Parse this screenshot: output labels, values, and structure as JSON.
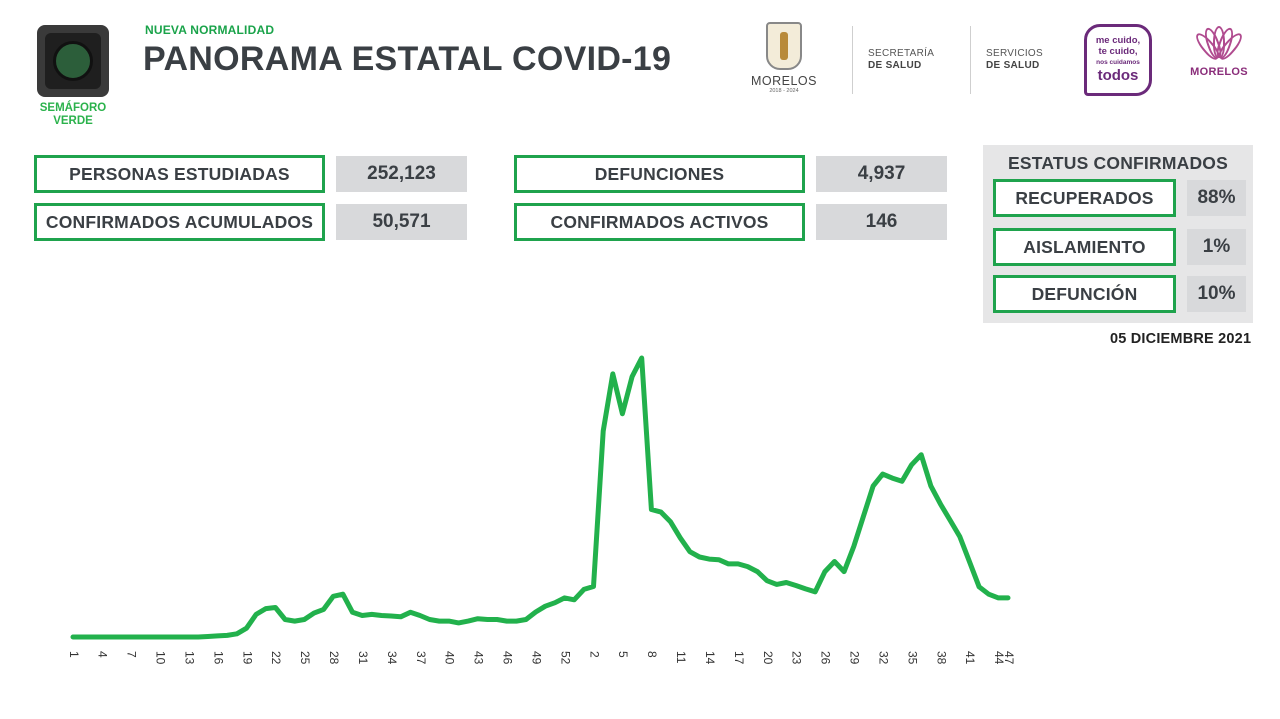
{
  "header": {
    "semaforo_label_line1": "SEMÁFORO",
    "semaforo_label_line2": "VERDE",
    "subtitle": "NUEVA NORMALIDAD",
    "title": "PANORAMA ESTATAL COVID-19",
    "logo_morelos_name": "MORELOS",
    "logo_morelos_years": "2018 - 2024",
    "secretaria_line1": "SECRETARÍA",
    "secretaria_line2": "DE SALUD",
    "servicios_line1": "SERVICIOS",
    "servicios_line2": "DE SALUD",
    "mecuido_line1": "me cuido,",
    "mecuido_line2": "te cuido,",
    "mecuido_line3": "nos cuidamos",
    "mecuido_line4": "todos",
    "flor_name": "MORELOS"
  },
  "stats": {
    "personas_estudiadas_label": "PERSONAS ESTUDIADAS",
    "personas_estudiadas_value": "252,123",
    "confirmados_acumulados_label": "CONFIRMADOS ACUMULADOS",
    "confirmados_acumulados_value": "50,571",
    "defunciones_label": "DEFUNCIONES",
    "defunciones_value": "4,937",
    "confirmados_activos_label": "CONFIRMADOS ACTIVOS",
    "confirmados_activos_value": "146"
  },
  "estatus": {
    "title": "ESTATUS CONFIRMADOS",
    "recuperados_label": "RECUPERADOS",
    "recuperados_value": "88%",
    "aislamiento_label": "AISLAMIENTO",
    "aislamiento_value": "1%",
    "defuncion_label": "DEFUNCIÓN",
    "defuncion_value": "10%"
  },
  "fecha": "05 DICIEMBRE 2021",
  "colors": {
    "accent_green": "#1fa34d",
    "line_green": "#22b14c",
    "value_bg": "#d8d9db",
    "panel_bg": "#e6e6e7"
  },
  "chart_data": {
    "type": "line",
    "title": "",
    "xlabel": "",
    "ylabel": "",
    "grid": false,
    "legend": "none",
    "tick_labels": [
      "1",
      "4",
      "7",
      "10",
      "13",
      "16",
      "19",
      "22",
      "25",
      "28",
      "31",
      "34",
      "37",
      "40",
      "43",
      "46",
      "49",
      "52",
      "2",
      "5",
      "8",
      "11",
      "14",
      "17",
      "20",
      "23",
      "26",
      "29",
      "32",
      "35",
      "38",
      "41",
      "44",
      "47"
    ],
    "values": [
      0,
      0,
      0,
      0,
      0,
      0,
      0,
      0,
      0,
      0,
      0,
      0,
      0,
      0,
      0.2,
      0.4,
      0.6,
      1.2,
      3.3,
      8.5,
      10.7,
      11.1,
      6.6,
      6,
      6.6,
      9,
      10.4,
      15.3,
      16.1,
      9.3,
      8.1,
      8.5,
      8.1,
      7.9,
      7.6,
      9.3,
      8.1,
      6.6,
      6,
      6,
      5.3,
      6,
      6.9,
      6.6,
      6.6,
      6,
      6,
      6.6,
      9.4,
      11.6,
      12.9,
      14.7,
      14,
      17.9,
      19,
      77.5,
      99,
      84,
      98,
      105,
      48,
      47,
      43.3,
      37.3,
      32.1,
      30.1,
      29.3,
      29.1,
      27.5,
      27.5,
      26.5,
      24.6,
      21.2,
      19.8,
      20.5,
      19.4,
      18.1,
      17,
      24.6,
      28.4,
      24.6,
      34.1,
      45.4,
      56.8,
      61.3,
      59.8,
      58.6,
      64.8,
      68.6,
      56.8,
      50,
      43.9,
      37.8,
      28.4,
      18.9,
      16.1,
      14.7,
      14.7
    ]
  }
}
